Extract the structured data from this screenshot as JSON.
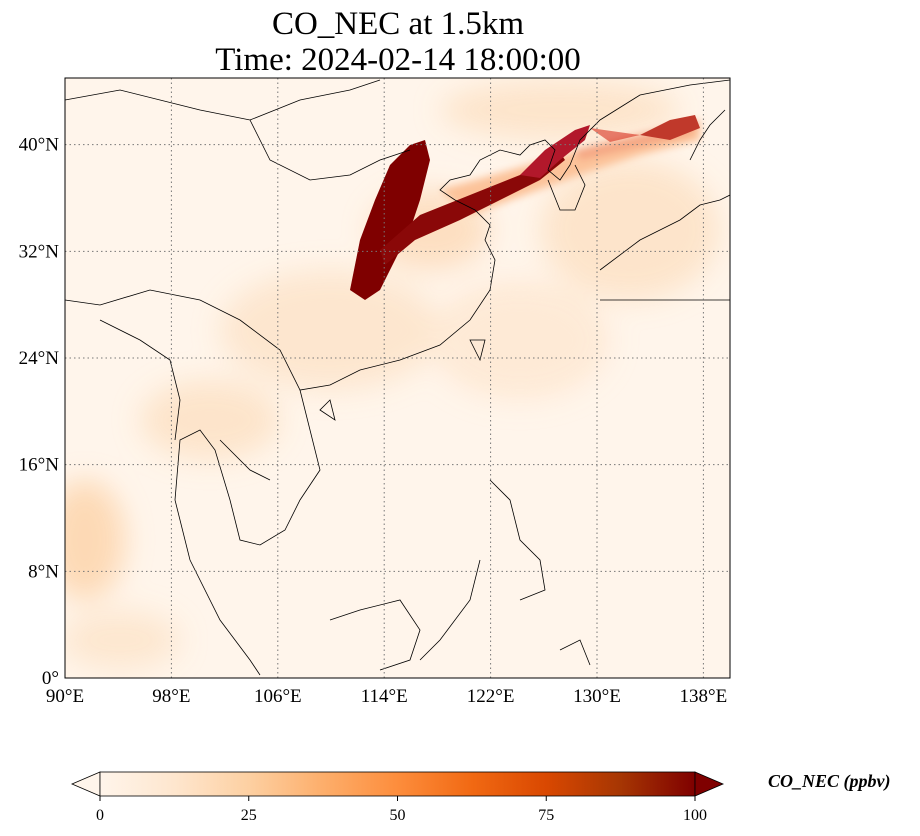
{
  "title_line1": "CO_NEC at 1.5km",
  "title_line2": "Time: 2024-02-14 18:00:00",
  "map": {
    "lon_range": [
      90,
      140
    ],
    "lat_range": [
      0,
      45
    ],
    "lon_ticks": [
      {
        "value": 90,
        "label": "90°E"
      },
      {
        "value": 98,
        "label": "98°E"
      },
      {
        "value": 106,
        "label": "106°E"
      },
      {
        "value": 114,
        "label": "114°E"
      },
      {
        "value": 122,
        "label": "122°E"
      },
      {
        "value": 130,
        "label": "130°E"
      },
      {
        "value": 138,
        "label": "138°E"
      }
    ],
    "lat_ticks": [
      {
        "value": 0,
        "label": "0°"
      },
      {
        "value": 8,
        "label": "8°N"
      },
      {
        "value": 16,
        "label": "16°N"
      },
      {
        "value": 24,
        "label": "24°N"
      },
      {
        "value": 32,
        "label": "32°N"
      },
      {
        "value": 40,
        "label": "40°N"
      }
    ],
    "gridlines": true
  },
  "colorbar": {
    "label": "CO_NEC (ppbv)",
    "min": 0,
    "max": 100,
    "extend": "both",
    "ticks": [
      {
        "value": 0,
        "label": "0"
      },
      {
        "value": 25,
        "label": "25"
      },
      {
        "value": 50,
        "label": "50"
      },
      {
        "value": 75,
        "label": "75"
      },
      {
        "value": 100,
        "label": "100"
      }
    ],
    "colors": [
      "#fff5eb",
      "#fee6ce",
      "#fdd0a2",
      "#fdae6b",
      "#fd8d3c",
      "#f16913",
      "#d94801",
      "#a63603",
      "#7f0000"
    ]
  }
}
